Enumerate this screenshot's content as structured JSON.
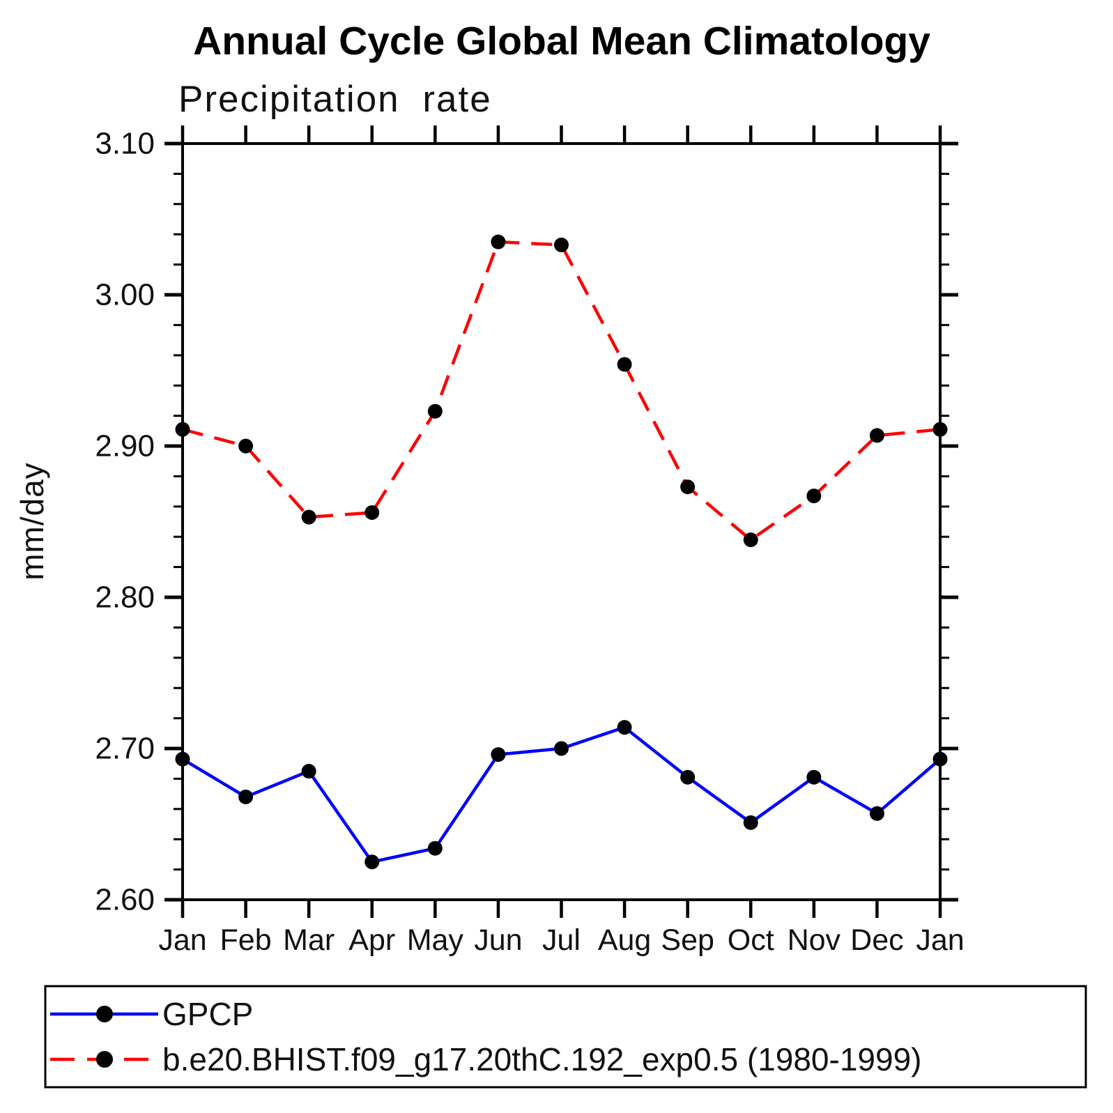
{
  "title": "Annual Cycle Global Mean Climatology",
  "subtitle": "Precipitation rate",
  "ylabel": "mm/day",
  "colors": {
    "axis": "#000000",
    "marker": "#000000",
    "gpcp_line": "#0000ff",
    "model_line": "#ff0000"
  },
  "chart_data": {
    "type": "line",
    "title": "Annual Cycle Global Mean Climatology",
    "subtitle": "Precipitation rate",
    "xlabel": "",
    "ylabel": "mm/day",
    "categories": [
      "Jan",
      "Feb",
      "Mar",
      "Apr",
      "May",
      "Jun",
      "Jul",
      "Aug",
      "Sep",
      "Oct",
      "Nov",
      "Dec",
      "Jan"
    ],
    "series": [
      {
        "name": "GPCP",
        "color": "#0000ff",
        "line_style": "solid",
        "marker": "filled-circle",
        "marker_color": "#000000",
        "values": [
          2.693,
          2.668,
          2.685,
          2.625,
          2.634,
          2.696,
          2.7,
          2.714,
          2.681,
          2.651,
          2.681,
          2.657,
          2.693
        ]
      },
      {
        "name": "b.e20.BHIST.f09_g17.20thC.192_exp0.5 (1980-1999)",
        "color": "#ff0000",
        "line_style": "dashed",
        "marker": "filled-circle",
        "marker_color": "#000000",
        "values": [
          2.911,
          2.9,
          2.853,
          2.856,
          2.923,
          3.035,
          3.033,
          2.954,
          2.873,
          2.838,
          2.867,
          2.907,
          2.911
        ]
      }
    ],
    "ylim": [
      2.6,
      3.1
    ],
    "ytick_major_step": 0.1,
    "ytick_minor_step": 0.02,
    "ytick_labels": [
      "2.60",
      "2.70",
      "2.80",
      "2.90",
      "3.00",
      "3.10"
    ],
    "grid": "off",
    "legend_position": "bottom-left-box"
  }
}
